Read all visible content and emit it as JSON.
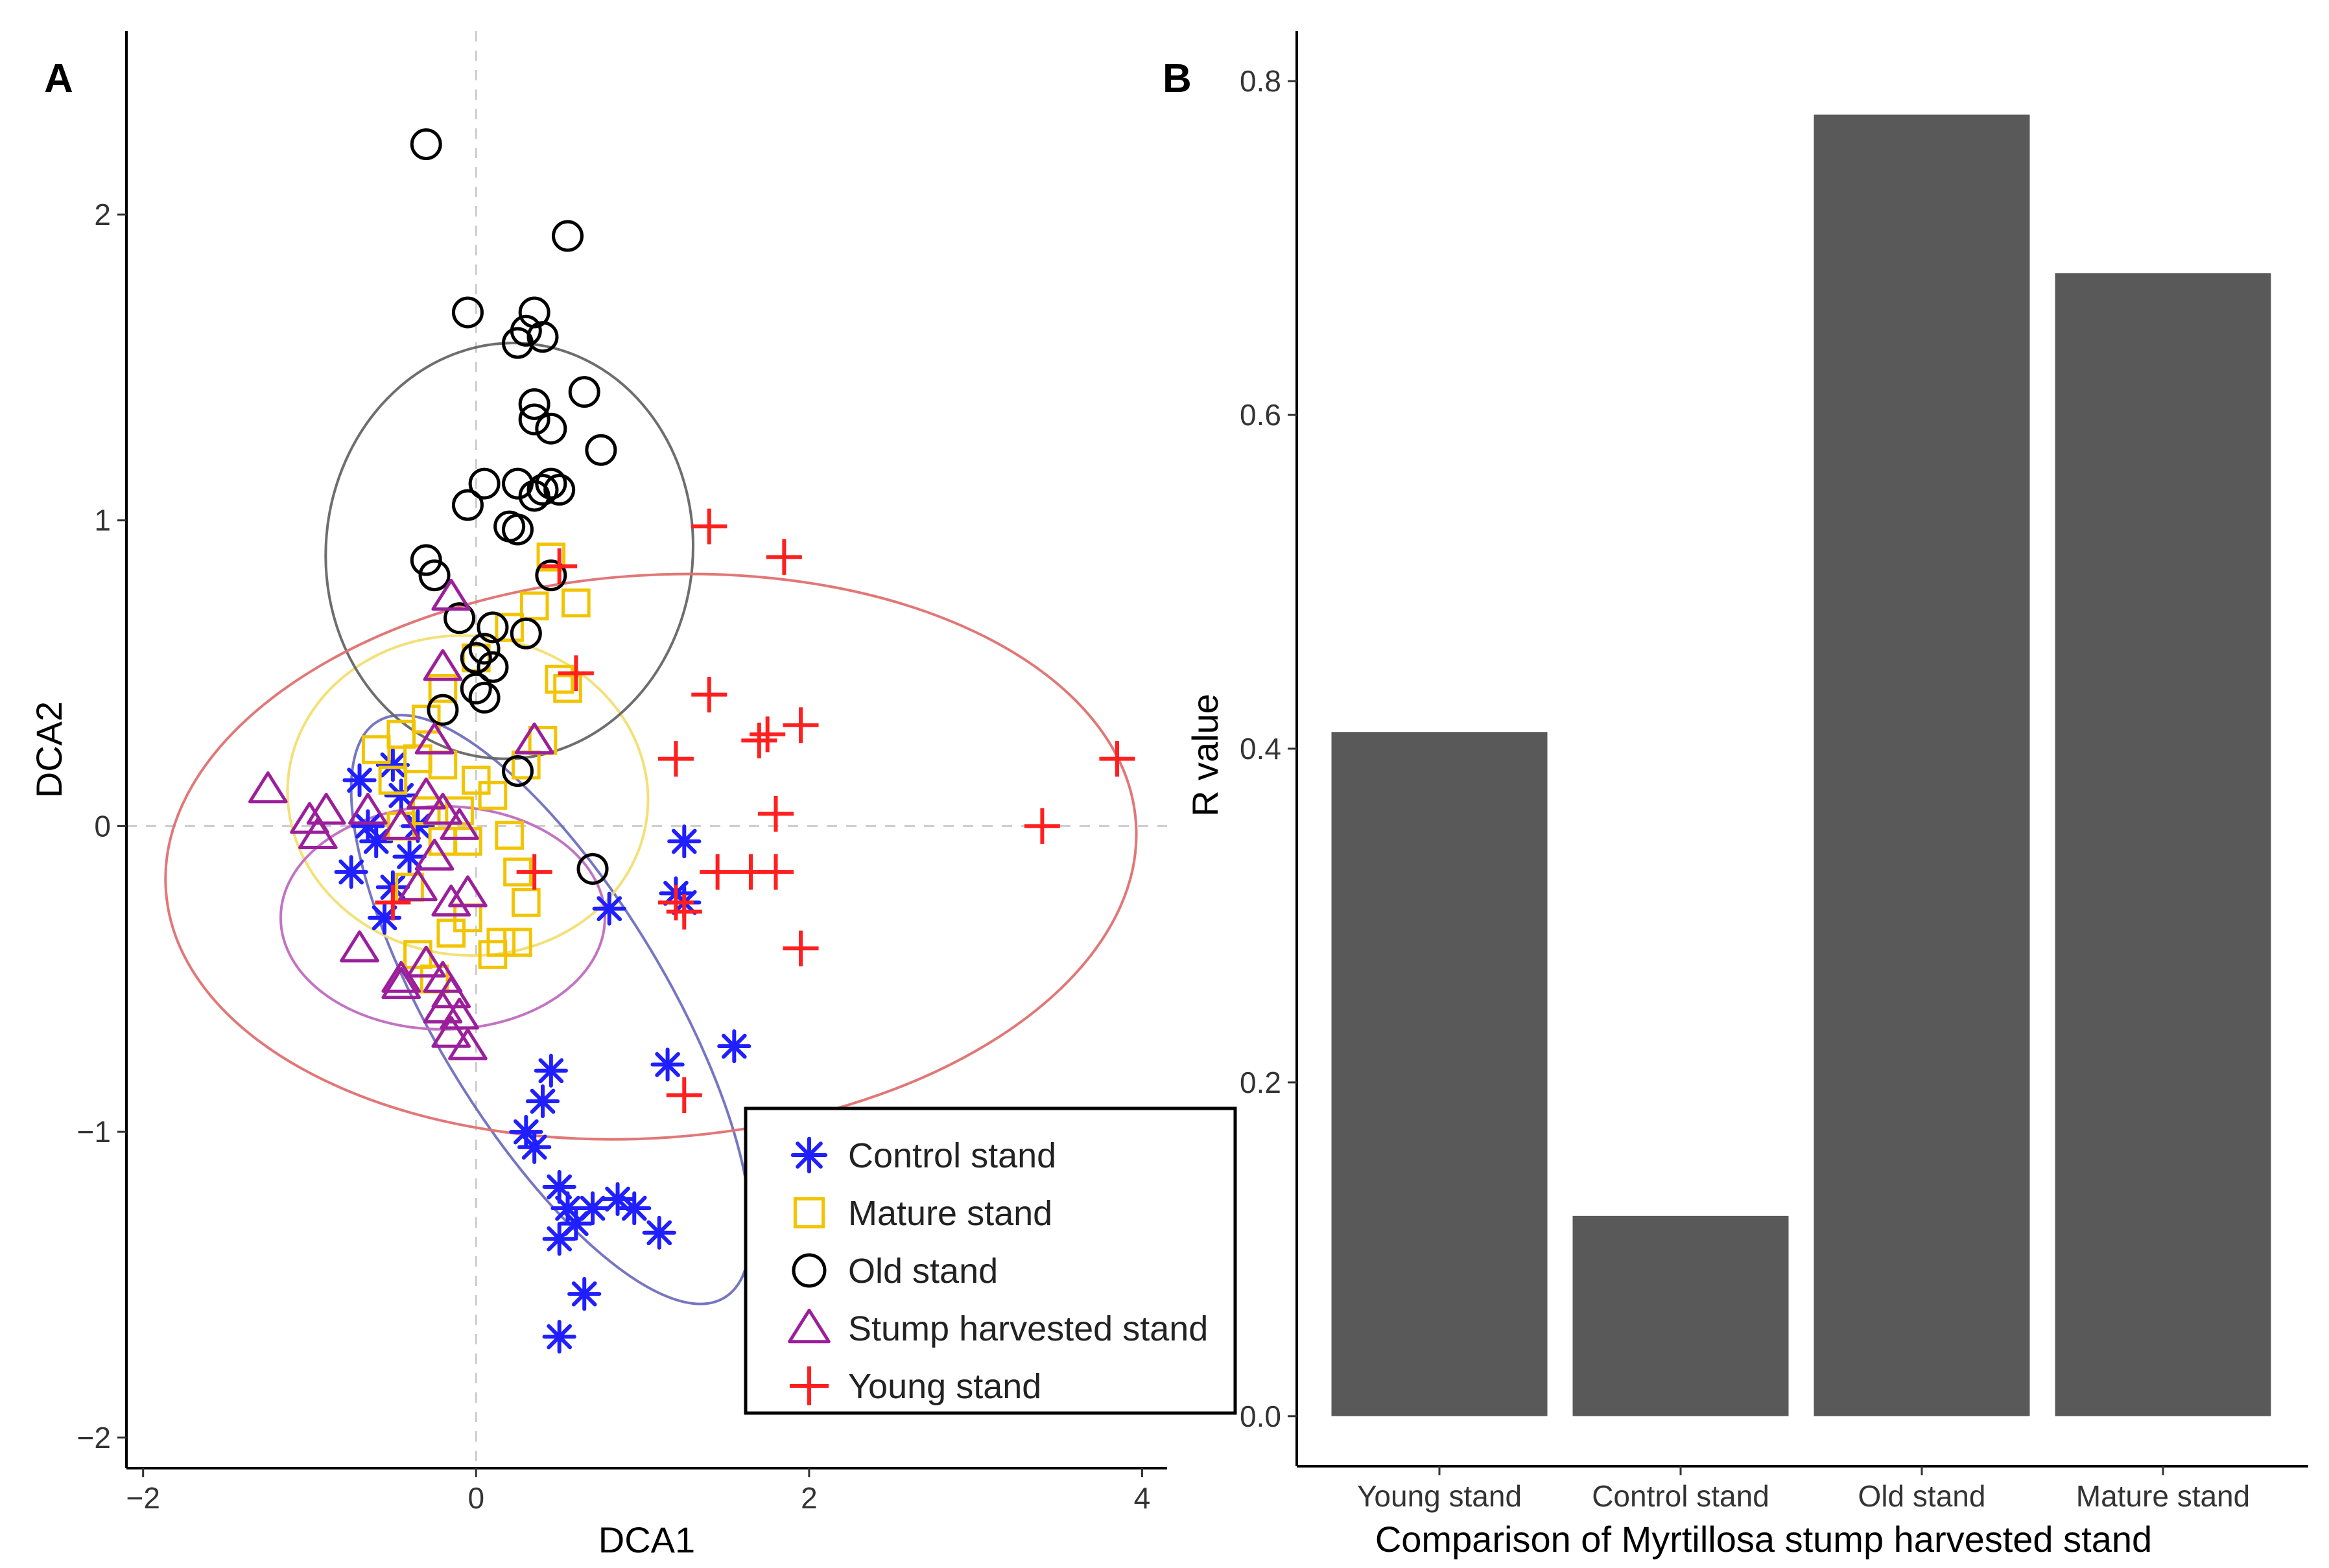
{
  "figure": {
    "panel_a_letter": "A",
    "panel_b_letter": "B"
  },
  "chart_data": [
    {
      "type": "scatter",
      "panel": "A",
      "xlabel": "DCA1",
      "ylabel": "DCA2",
      "xlim": [
        -2.1,
        4.15
      ],
      "ylim": [
        -2.1,
        2.6
      ],
      "xticks": [
        -2,
        0,
        2,
        4
      ],
      "yticks": [
        -2,
        -1,
        0,
        1,
        2
      ],
      "zero_lines": true,
      "grid": false,
      "legend_position": "bottom-right",
      "legend_boxed": true,
      "series": [
        {
          "name": "Control stand",
          "marker": "asterisk",
          "color": "#1f1fff",
          "points": [
            [
              -0.75,
              -0.15
            ],
            [
              -0.6,
              -0.05
            ],
            [
              -0.5,
              -0.2
            ],
            [
              -0.45,
              0.1
            ],
            [
              -0.65,
              0.0
            ],
            [
              -0.55,
              -0.3
            ],
            [
              -0.4,
              -0.1
            ],
            [
              -0.7,
              0.15
            ],
            [
              -0.35,
              0.0
            ],
            [
              -0.5,
              0.2
            ],
            [
              0.8,
              -0.27
            ],
            [
              1.2,
              -0.22
            ],
            [
              1.25,
              -0.25
            ],
            [
              1.25,
              -0.05
            ],
            [
              1.55,
              -0.72
            ],
            [
              1.15,
              -0.78
            ],
            [
              0.45,
              -0.8
            ],
            [
              0.4,
              -0.9
            ],
            [
              0.3,
              -1.0
            ],
            [
              0.35,
              -1.05
            ],
            [
              0.5,
              -1.18
            ],
            [
              0.55,
              -1.25
            ],
            [
              0.7,
              -1.25
            ],
            [
              0.85,
              -1.22
            ],
            [
              0.95,
              -1.25
            ],
            [
              0.6,
              -1.3
            ],
            [
              0.5,
              -1.35
            ],
            [
              1.1,
              -1.33
            ],
            [
              0.65,
              -1.53
            ],
            [
              0.5,
              -1.67
            ]
          ]
        },
        {
          "name": "Mature stand",
          "marker": "square",
          "color": "#f2c400",
          "points": [
            [
              0.45,
              0.88
            ],
            [
              0.35,
              0.72
            ],
            [
              0.6,
              0.73
            ],
            [
              0.5,
              0.48
            ],
            [
              0.55,
              0.45
            ],
            [
              0.4,
              0.28
            ],
            [
              0.3,
              0.2
            ],
            [
              0.2,
              0.65
            ],
            [
              0.0,
              0.55
            ],
            [
              -0.2,
              0.45
            ],
            [
              -0.3,
              0.35
            ],
            [
              -0.45,
              0.3
            ],
            [
              -0.6,
              0.25
            ],
            [
              -0.5,
              0.15
            ],
            [
              -0.35,
              0.22
            ],
            [
              -0.2,
              0.2
            ],
            [
              0.0,
              0.15
            ],
            [
              0.1,
              0.1
            ],
            [
              -0.1,
              0.05
            ],
            [
              -0.3,
              0.05
            ],
            [
              -0.45,
              0.0
            ],
            [
              -0.2,
              -0.05
            ],
            [
              -0.05,
              -0.05
            ],
            [
              0.2,
              -0.03
            ],
            [
              0.25,
              -0.15
            ],
            [
              0.3,
              -0.25
            ],
            [
              0.15,
              -0.38
            ],
            [
              0.1,
              -0.42
            ],
            [
              0.25,
              -0.38
            ],
            [
              -0.4,
              -0.2
            ],
            [
              -0.35,
              -0.42
            ],
            [
              -0.15,
              -0.35
            ],
            [
              -0.25,
              -0.5
            ],
            [
              -0.05,
              -0.3
            ]
          ]
        },
        {
          "name": "Old stand",
          "marker": "circle",
          "color": "#000000",
          "points": [
            [
              -0.3,
              2.23
            ],
            [
              0.55,
              1.93
            ],
            [
              -0.05,
              1.68
            ],
            [
              0.35,
              1.68
            ],
            [
              0.3,
              1.62
            ],
            [
              0.4,
              1.6
            ],
            [
              0.25,
              1.58
            ],
            [
              0.65,
              1.42
            ],
            [
              0.35,
              1.38
            ],
            [
              0.35,
              1.33
            ],
            [
              0.45,
              1.3
            ],
            [
              0.75,
              1.23
            ],
            [
              0.05,
              1.12
            ],
            [
              0.25,
              1.12
            ],
            [
              0.4,
              1.1
            ],
            [
              0.45,
              1.12
            ],
            [
              0.5,
              1.1
            ],
            [
              0.35,
              1.08
            ],
            [
              -0.05,
              1.05
            ],
            [
              0.2,
              0.98
            ],
            [
              0.25,
              0.97
            ],
            [
              0.45,
              0.82
            ],
            [
              -0.3,
              0.87
            ],
            [
              -0.25,
              0.82
            ],
            [
              -0.1,
              0.68
            ],
            [
              0.1,
              0.65
            ],
            [
              0.05,
              0.58
            ],
            [
              0.0,
              0.55
            ],
            [
              0.1,
              0.52
            ],
            [
              0.3,
              0.63
            ],
            [
              0.0,
              0.45
            ],
            [
              0.05,
              0.42
            ],
            [
              -0.2,
              0.38
            ],
            [
              0.25,
              0.18
            ],
            [
              0.7,
              -0.14
            ]
          ]
        },
        {
          "name": "Stump harvested stand",
          "marker": "triangle",
          "color": "#9b1f9b",
          "points": [
            [
              -1.25,
              0.12
            ],
            [
              -1.0,
              0.02
            ],
            [
              -0.9,
              0.05
            ],
            [
              -0.95,
              -0.03
            ],
            [
              -0.65,
              0.05
            ],
            [
              -0.45,
              0.0
            ],
            [
              -0.3,
              0.1
            ],
            [
              -0.2,
              0.05
            ],
            [
              -0.1,
              0.0
            ],
            [
              -0.25,
              -0.1
            ],
            [
              -0.35,
              -0.2
            ],
            [
              -0.15,
              -0.25
            ],
            [
              -0.05,
              -0.22
            ],
            [
              -0.25,
              0.28
            ],
            [
              -0.2,
              0.52
            ],
            [
              -0.15,
              0.75
            ],
            [
              0.35,
              0.28
            ],
            [
              -0.7,
              -0.4
            ],
            [
              -0.45,
              -0.5
            ],
            [
              -0.3,
              -0.45
            ],
            [
              -0.2,
              -0.5
            ],
            [
              -0.15,
              -0.55
            ],
            [
              -0.45,
              -0.52
            ],
            [
              -0.2,
              -0.6
            ],
            [
              -0.1,
              -0.62
            ],
            [
              -0.15,
              -0.68
            ],
            [
              -0.05,
              -0.72
            ]
          ]
        },
        {
          "name": "Young stand",
          "marker": "plus",
          "color": "#ff1f1f",
          "points": [
            [
              1.4,
              0.98
            ],
            [
              1.85,
              0.88
            ],
            [
              1.4,
              0.43
            ],
            [
              1.75,
              0.3
            ],
            [
              1.95,
              0.33
            ],
            [
              1.7,
              0.28
            ],
            [
              1.2,
              0.22
            ],
            [
              3.85,
              0.22
            ],
            [
              3.4,
              0.0
            ],
            [
              1.8,
              0.04
            ],
            [
              1.45,
              -0.15
            ],
            [
              1.65,
              -0.15
            ],
            [
              1.8,
              -0.15
            ],
            [
              1.2,
              -0.25
            ],
            [
              1.25,
              -0.28
            ],
            [
              1.95,
              -0.4
            ],
            [
              1.25,
              -0.88
            ],
            [
              0.6,
              0.5
            ],
            [
              0.35,
              -0.15
            ],
            [
              0.5,
              0.85
            ],
            [
              -0.5,
              -0.25
            ]
          ]
        }
      ],
      "ellipses": [
        {
          "group": "Control stand",
          "color": "#6f6fbf",
          "center": [
            0.45,
            -0.6
          ],
          "semi_axes": [
            2.02,
            0.38
          ],
          "angle_deg": -59.0
        },
        {
          "group": "Mature stand",
          "color": "#f2de70",
          "center": [
            -0.05,
            0.1
          ],
          "semi_axes": [
            0.96,
            0.59
          ],
          "angle_deg": 84.0
        },
        {
          "group": "Old stand",
          "color": "#666666",
          "center": [
            0.2,
            0.9
          ],
          "semi_axes": [
            1.25,
            0.6
          ],
          "angle_deg": 85.0
        },
        {
          "group": "Stump harvested stand",
          "color": "#c06cc0",
          "center": [
            -0.2,
            -0.3
          ],
          "semi_axes": [
            0.67,
            0.53
          ],
          "angle_deg": 90.0
        },
        {
          "group": "Young stand",
          "color": "#e07070",
          "center": [
            1.05,
            -0.1
          ],
          "semi_axes": [
            2.92,
            0.92
          ],
          "angle_deg": 4.0
        }
      ]
    },
    {
      "type": "bar",
      "panel": "B",
      "xlabel": "Comparison of Myrtillosa stump harvested stand",
      "ylabel": "R value",
      "categories": [
        "Young stand",
        "Control stand",
        "Old stand",
        "Mature stand"
      ],
      "values": [
        0.41,
        0.12,
        0.78,
        0.685
      ],
      "ylim": [
        -0.03,
        0.83
      ],
      "yticks": [
        0.0,
        0.2,
        0.4,
        0.6,
        0.8
      ],
      "ytick_labels": [
        "0.0",
        "0.2",
        "0.4",
        "0.6",
        "0.8"
      ],
      "bar_color": "#595959",
      "grid": false
    }
  ]
}
